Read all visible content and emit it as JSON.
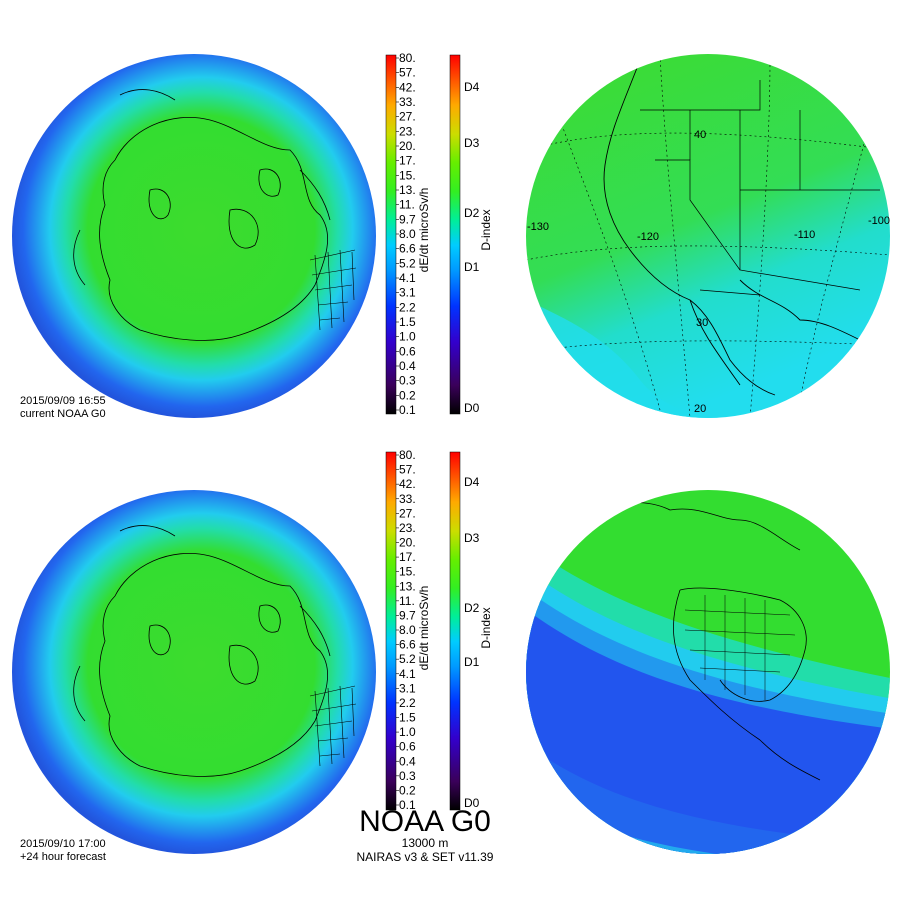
{
  "panels": {
    "top": {
      "timestamp": "2015/09/09 16:55",
      "caption": "current NOAA G0"
    },
    "bottom": {
      "timestamp": "2015/09/10 17:00",
      "caption": "+24 hour forecast"
    }
  },
  "colorbars": {
    "dose": {
      "label": "dE/dt microSv/h",
      "ticks": [
        "80.",
        "57.",
        "42.",
        "33.",
        "27.",
        "23.",
        "20.",
        "17.",
        "15.",
        "13.",
        "11.",
        "9.7",
        "8.0",
        "6.6",
        "5.2",
        "4.1",
        "3.1",
        "2.2",
        "1.5",
        "1.0",
        "0.6",
        "0.4",
        "0.3",
        "0.2",
        "0.1"
      ]
    },
    "dindex": {
      "label": "D-index",
      "ticks": [
        "D4",
        "D3",
        "D2",
        "D1",
        "D0"
      ]
    }
  },
  "regional_grid_labels": {
    "lon": [
      "-130",
      "-120",
      "-110",
      "-100"
    ],
    "lat": [
      "40",
      "30",
      "20"
    ]
  },
  "footer": {
    "title": "NOAA G0",
    "altitude": "13000 m",
    "model": "NAIRAS v3 & SET v11.39"
  },
  "colors": {
    "green": "#33dd22",
    "cyan": "#22ddee",
    "blue": "#2255ee",
    "dark_blue": "#2244dd"
  }
}
